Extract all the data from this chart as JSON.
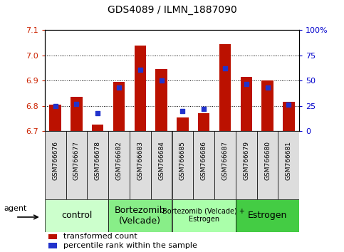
{
  "title": "GDS4089 / ILMN_1887090",
  "samples": [
    "GSM766676",
    "GSM766677",
    "GSM766678",
    "GSM766682",
    "GSM766683",
    "GSM766684",
    "GSM766685",
    "GSM766686",
    "GSM766687",
    "GSM766679",
    "GSM766680",
    "GSM766681"
  ],
  "transformed_count": [
    6.805,
    6.835,
    6.725,
    6.895,
    7.04,
    6.945,
    6.755,
    6.77,
    7.045,
    6.915,
    6.9,
    6.815
  ],
  "percentile_rank": [
    25,
    27,
    18,
    43,
    61,
    50,
    20,
    22,
    62,
    47,
    43,
    26
  ],
  "ylim_left": [
    6.7,
    7.1
  ],
  "ylim_right": [
    0,
    100
  ],
  "yticks_left": [
    6.7,
    6.8,
    6.9,
    7.0,
    7.1
  ],
  "yticks_right": [
    0,
    25,
    50,
    75,
    100
  ],
  "ytick_labels_right": [
    "0",
    "25",
    "50",
    "75",
    "100%"
  ],
  "groups": [
    {
      "label": "control",
      "start": 0,
      "end": 3,
      "color": "#ccffcc"
    },
    {
      "label": "Bortezomib\n(Velcade)",
      "start": 3,
      "end": 6,
      "color": "#88ee88"
    },
    {
      "label": "Bortezomib (Velcade) +\nEstrogen",
      "start": 6,
      "end": 9,
      "color": "#aaffaa"
    },
    {
      "label": "Estrogen",
      "start": 9,
      "end": 12,
      "color": "#44cc44"
    }
  ],
  "bar_color": "#bb1100",
  "dot_color": "#2233cc",
  "bar_width": 0.55,
  "dot_size": 25,
  "agent_label": "agent",
  "legend_items": [
    {
      "label": "transformed count",
      "color": "#bb1100"
    },
    {
      "label": "percentile rank within the sample",
      "color": "#2233cc"
    }
  ],
  "bg_color": "#ffffff",
  "xlabel_color": "#cc2200",
  "ylabel_right_color": "#0000cc",
  "tick_label_bg": "#dddddd"
}
